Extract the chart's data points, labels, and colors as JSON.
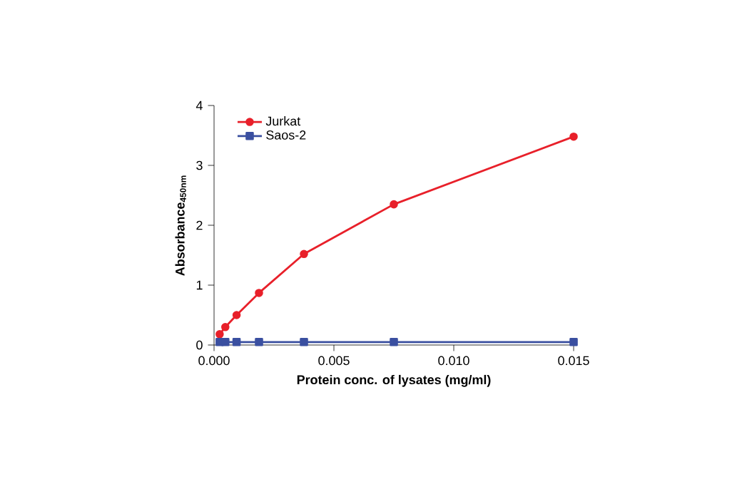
{
  "chart_data": {
    "type": "line",
    "xlabel": "Protein conc. of lysates (mg/ml)",
    "ylabel": "Absorbance$_{450nm}$",
    "xlim": [
      0,
      0.015
    ],
    "ylim": [
      0,
      4
    ],
    "xticks": [
      {
        "value": 0,
        "label": "0.000"
      },
      {
        "value": 0.005,
        "label": "0.005"
      },
      {
        "value": 0.01,
        "label": "0.010"
      },
      {
        "value": 0.015,
        "label": "0.015"
      }
    ],
    "yticks": [
      0,
      1,
      2,
      3,
      4
    ],
    "legend": "top left",
    "grid": false,
    "line_style": "solid",
    "series": [
      {
        "name": "Jurkat",
        "color": "#e8202a",
        "marker": "circle",
        "x": [
          0.000234,
          0.00047,
          0.00094,
          0.001875,
          0.00375,
          0.0075,
          0.015
        ],
        "values": [
          0.18,
          0.3,
          0.5,
          0.87,
          1.52,
          2.35,
          3.48
        ]
      },
      {
        "name": "Saos-2",
        "color": "#3a4fa0",
        "marker": "square",
        "x": [
          0.000234,
          0.00047,
          0.00094,
          0.001875,
          0.00375,
          0.0075,
          0.015
        ],
        "values": [
          0.05,
          0.05,
          0.05,
          0.05,
          0.05,
          0.05,
          0.05
        ]
      }
    ]
  }
}
